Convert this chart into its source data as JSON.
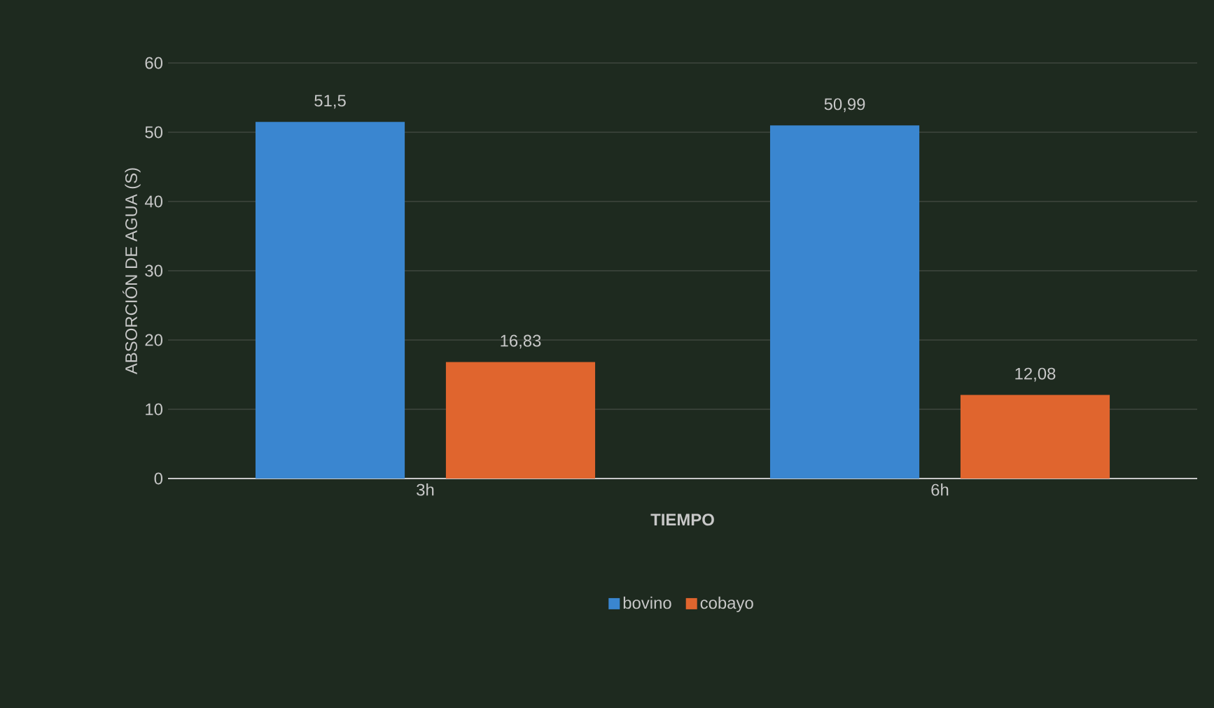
{
  "chart_data": {
    "type": "bar",
    "xlabel": "TIEMPO",
    "ylabel": "ABSORCIÓN DE AGUA (S)",
    "categories": [
      "3h",
      "6h"
    ],
    "series": [
      {
        "name": "bovino",
        "color": "#3a86d0",
        "values": [
          51.5,
          50.99
        ],
        "value_labels": [
          "51,5",
          "50,99"
        ]
      },
      {
        "name": "cobayo",
        "color": "#e0652e",
        "values": [
          16.83,
          12.08
        ],
        "value_labels": [
          "16,83",
          "12,08"
        ]
      }
    ],
    "ylim": [
      0,
      60
    ],
    "yticks": [
      0,
      10,
      20,
      30,
      40,
      50,
      60
    ],
    "grid": "y",
    "legend": "bottom"
  }
}
